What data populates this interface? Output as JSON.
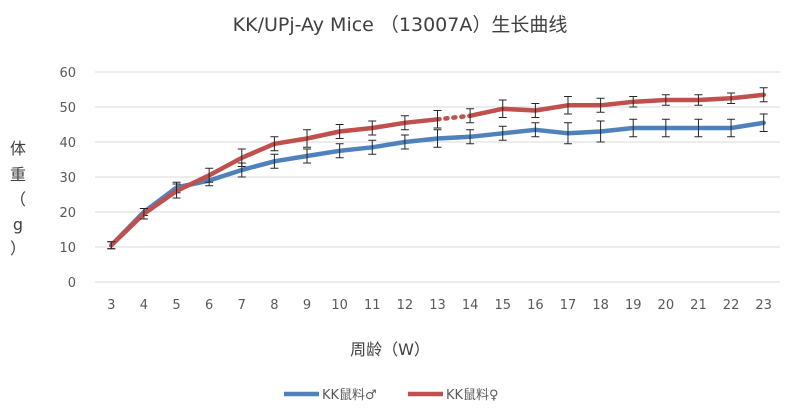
{
  "chart_data": {
    "type": "line",
    "title": "KK/UPj-Ay Mice （13007A）生长曲线",
    "xlabel": "周龄（W）",
    "ylabel": [
      "体",
      "重",
      "（",
      "g",
      "）"
    ],
    "ylim": [
      0,
      60
    ],
    "yticks": [
      0,
      10,
      20,
      30,
      40,
      50,
      60
    ],
    "categories": [
      "3",
      "4",
      "5",
      "6",
      "7",
      "8",
      "9",
      "10",
      "11",
      "12",
      "13",
      "14",
      "15",
      "16",
      "17",
      "18",
      "19",
      "20",
      "21",
      "22",
      "23"
    ],
    "series": [
      {
        "name": "KK鼠料♂",
        "color": "#4f81bd",
        "values": [
          10.5,
          20,
          27,
          29,
          32,
          34.5,
          36,
          37.5,
          38.5,
          40,
          41,
          41.5,
          42.5,
          43.5,
          42.5,
          43,
          44,
          44,
          44,
          44,
          45.5
        ],
        "errors": [
          1.0,
          1.0,
          1.5,
          1.5,
          2.0,
          2.0,
          2.0,
          2.0,
          2.0,
          2.0,
          2.5,
          2.0,
          2.0,
          2.0,
          3.0,
          3.0,
          2.5,
          2.5,
          2.5,
          2.5,
          2.5
        ]
      },
      {
        "name": "KK鼠料♀",
        "color": "#c0504d",
        "values": [
          10.5,
          19.5,
          26,
          30.5,
          35.5,
          39.5,
          41,
          43,
          44,
          45.5,
          46.5,
          47.5,
          49.5,
          49,
          50.5,
          50.5,
          51.5,
          52,
          52,
          52.5,
          53.5
        ],
        "errors": [
          1.0,
          1.5,
          2.0,
          2.0,
          2.5,
          2.0,
          2.5,
          2.0,
          2.0,
          2.0,
          2.5,
          2.0,
          2.5,
          2.0,
          2.5,
          2.0,
          1.5,
          1.5,
          1.5,
          1.5,
          2.0
        ],
        "dotted_segment": [
          "13",
          "14"
        ]
      }
    ],
    "grid": true,
    "legend": "bottom-center"
  }
}
